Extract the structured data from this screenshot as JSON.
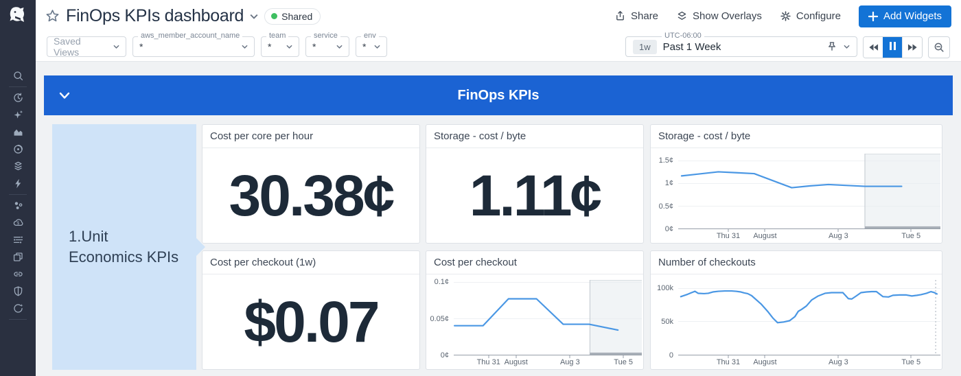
{
  "header": {
    "title": "FinOps KPIs dashboard",
    "shared_label": "Shared",
    "actions": {
      "share": "Share",
      "show_overlays": "Show Overlays",
      "configure": "Configure",
      "add_widgets": "Add Widgets"
    }
  },
  "filters": {
    "saved_views_label": "Saved Views",
    "variables": [
      {
        "label": "aws_member_account_name",
        "value": "*"
      },
      {
        "label": "team",
        "value": "*"
      },
      {
        "label": "service",
        "value": "*"
      },
      {
        "label": "env",
        "value": "*"
      }
    ]
  },
  "timebar": {
    "range_badge": "1w",
    "range_label": "Past 1 Week",
    "timezone": "UTC-06:00"
  },
  "sidebar": {
    "icons": [
      "search",
      "history",
      "sparkles",
      "metrics",
      "watchdog",
      "integrations",
      "events",
      "infrastructure",
      "cloud-cost",
      "log-pipelines",
      "dashboards",
      "apm",
      "security",
      "synthetics"
    ]
  },
  "group": {
    "title": "FinOps KPIs"
  },
  "note": {
    "text": "1.Unit Economics KPIs"
  },
  "colors": {
    "banner_blue": "#1b63d3",
    "accent_blue": "#1373d6",
    "line_blue": "#4a97e4",
    "note_bg": "#cfe3f8",
    "shared_green": "#3fbf61",
    "sidebar_bg": "#2a3040"
  },
  "chart_data": [
    {
      "type": "query_value",
      "title": "Cost per core per hour",
      "value": "30.38¢"
    },
    {
      "type": "query_value",
      "title": "Storage - cost / byte",
      "value": "1.11¢"
    },
    {
      "type": "line",
      "title": "Storage - cost / byte",
      "unit": "¢",
      "ylim": [
        0,
        1.65
      ],
      "yticks": [
        {
          "v": 0,
          "label": "0¢"
        },
        {
          "v": 0.5,
          "label": "0.5¢"
        },
        {
          "v": 1,
          "label": "1¢"
        },
        {
          "v": 1.5,
          "label": "1.5¢"
        }
      ],
      "xticks": [
        {
          "pct": 19.1,
          "label": "Thu 31"
        },
        {
          "pct": 33.1,
          "label": "August"
        },
        {
          "pct": 61.1,
          "label": "Aug 3"
        },
        {
          "pct": 88.8,
          "label": "Tue 5"
        }
      ],
      "points": [
        [
          1.3,
          1.16
        ],
        [
          15.3,
          1.25
        ],
        [
          22.4,
          1.23
        ],
        [
          29.0,
          1.21
        ],
        [
          43.3,
          0.9
        ],
        [
          50.4,
          0.94
        ],
        [
          57.3,
          0.97
        ],
        [
          71.2,
          0.93
        ],
        [
          85.2,
          0.93
        ]
      ],
      "shade_from_pct": 71.2
    },
    {
      "type": "query_value",
      "title": "Cost per checkout (1w)",
      "value": "$0.07"
    },
    {
      "type": "line",
      "title": "Cost per checkout",
      "unit": "¢",
      "ylim": [
        0,
        0.103
      ],
      "yticks": [
        {
          "v": 0,
          "label": "0¢"
        },
        {
          "v": 0.05,
          "label": "0.05¢"
        },
        {
          "v": 0.1,
          "label": "0.1¢"
        }
      ],
      "xticks": [
        {
          "pct": 18.5,
          "label": "Thu 31"
        },
        {
          "pct": 33.1,
          "label": "August"
        },
        {
          "pct": 61.8,
          "label": "Aug 3"
        },
        {
          "pct": 90.2,
          "label": "Tue 5"
        }
      ],
      "points": [
        [
          0.4,
          0.04
        ],
        [
          15.6,
          0.04
        ],
        [
          29.1,
          0.077
        ],
        [
          44.0,
          0.077
        ],
        [
          58.2,
          0.042
        ],
        [
          72.0,
          0.042
        ],
        [
          87.3,
          0.034
        ]
      ],
      "shade_from_pct": 72.4
    },
    {
      "type": "line",
      "title": "Number of checkouts",
      "unit": "k",
      "ylim": [
        0,
        112
      ],
      "yticks": [
        {
          "v": 0,
          "label": "0"
        },
        {
          "v": 50,
          "label": "50k"
        },
        {
          "v": 100,
          "label": "100k"
        }
      ],
      "xticks": [
        {
          "pct": 19.1,
          "label": "Thu 31"
        },
        {
          "pct": 33.1,
          "label": "August"
        },
        {
          "pct": 61.1,
          "label": "Aug 3"
        },
        {
          "pct": 88.8,
          "label": "Tue 5"
        }
      ],
      "points": [
        [
          1.0,
          87
        ],
        [
          3.6,
          90.5
        ],
        [
          5.1,
          93
        ],
        [
          6.4,
          95
        ],
        [
          7.6,
          92
        ],
        [
          9.9,
          91.5
        ],
        [
          11.5,
          92
        ],
        [
          13.2,
          94
        ],
        [
          15.3,
          95
        ],
        [
          17.8,
          95.5
        ],
        [
          20.4,
          95.5
        ],
        [
          22.1,
          95
        ],
        [
          23.9,
          94
        ],
        [
          25.2,
          92.5
        ],
        [
          26.5,
          91.5
        ],
        [
          28.0,
          88.5
        ],
        [
          31.6,
          76
        ],
        [
          34.1,
          65
        ],
        [
          36.1,
          55
        ],
        [
          37.9,
          48
        ],
        [
          40.2,
          49
        ],
        [
          42.5,
          51
        ],
        [
          44.5,
          57
        ],
        [
          45.8,
          65
        ],
        [
          47.1,
          68
        ],
        [
          48.9,
          73
        ],
        [
          50.9,
          82
        ],
        [
          53.4,
          88
        ],
        [
          56.0,
          92
        ],
        [
          58.5,
          93
        ],
        [
          61.1,
          93
        ],
        [
          62.8,
          93
        ],
        [
          64.9,
          84
        ],
        [
          66.2,
          83.5
        ],
        [
          67.9,
          88
        ],
        [
          69.7,
          93
        ],
        [
          71.8,
          94
        ],
        [
          73.8,
          94.5
        ],
        [
          75.6,
          94.5
        ],
        [
          78.1,
          87
        ],
        [
          80.2,
          86.5
        ],
        [
          81.9,
          89
        ],
        [
          84.5,
          89.5
        ],
        [
          87.0,
          89.5
        ],
        [
          89.1,
          88
        ],
        [
          91.1,
          89
        ],
        [
          92.6,
          90
        ],
        [
          94.7,
          92
        ],
        [
          96.4,
          94.5
        ],
        [
          97.7,
          93
        ],
        [
          98.7,
          91
        ]
      ],
      "dotted_line_pct": 98.2
    }
  ]
}
